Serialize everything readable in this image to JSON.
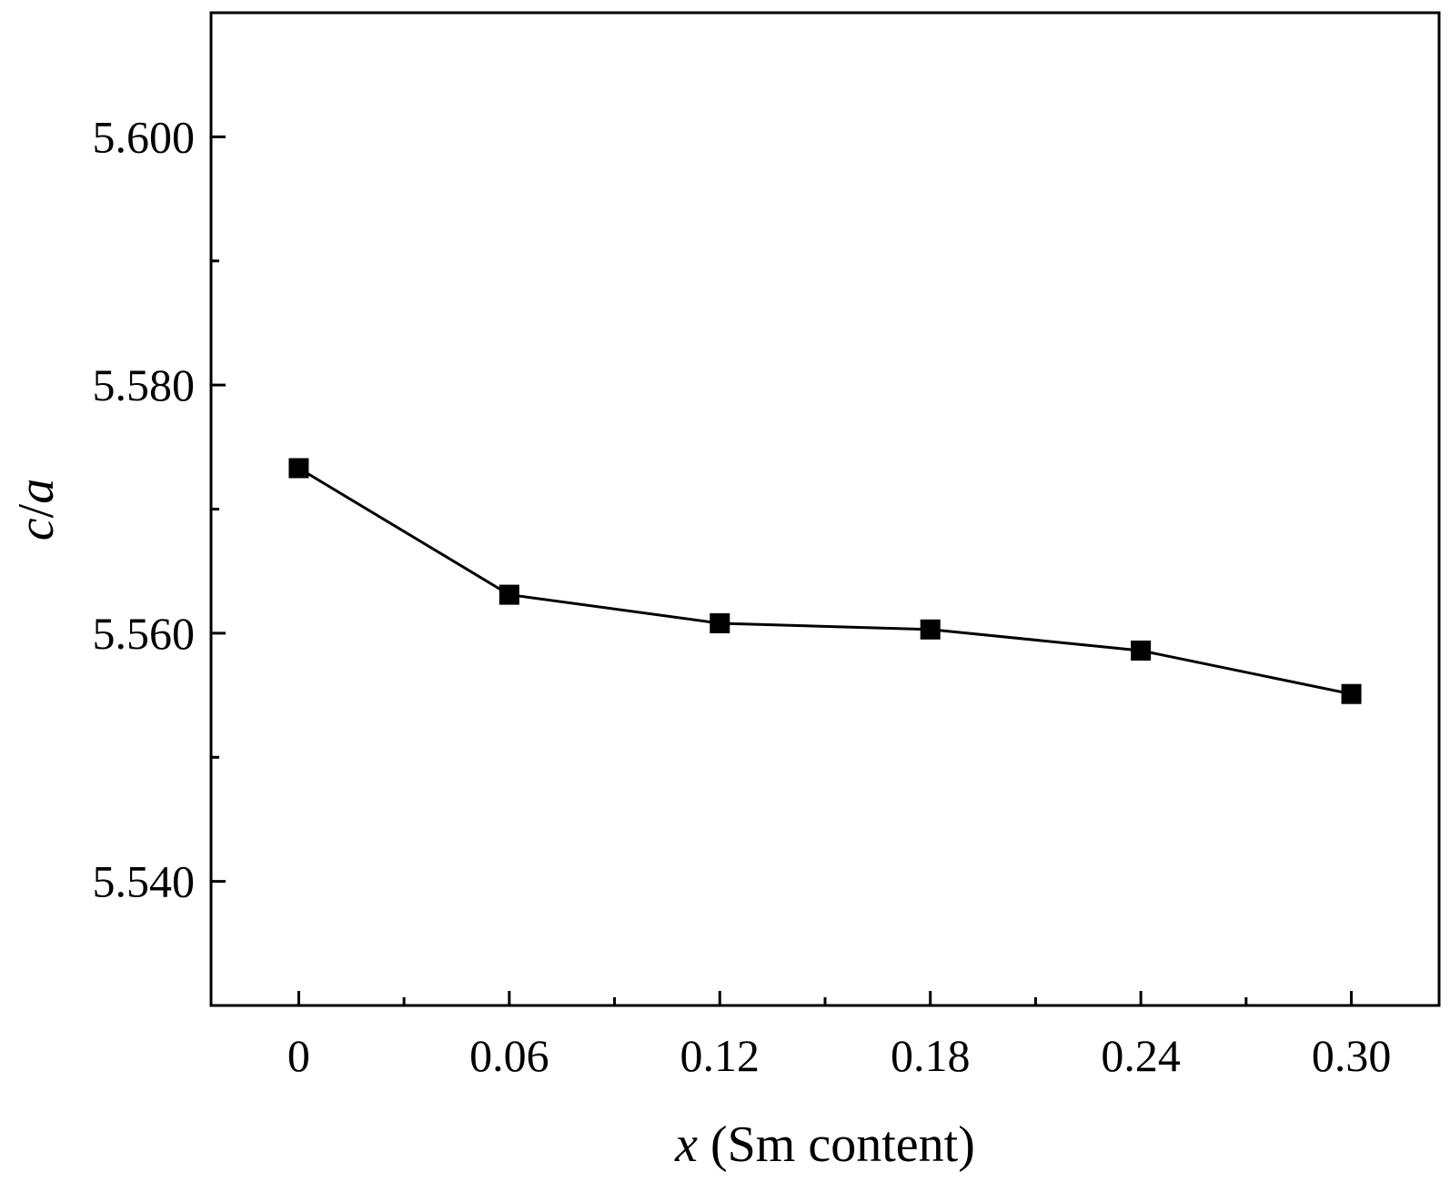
{
  "chart_data": {
    "type": "line",
    "title": "",
    "xlabel_var": "x",
    "xlabel_rest": " (Sm content)",
    "ylabel_c": "c",
    "ylabel_slash": "/",
    "ylabel_a": "a",
    "x": [
      0,
      0.06,
      0.12,
      0.18,
      0.24,
      0.3
    ],
    "x_tick_labels": [
      "0",
      "0.06",
      "0.12",
      "0.18",
      "0.24",
      "0.30"
    ],
    "series": [
      {
        "values": [
          5.5733,
          5.5631,
          5.5608,
          5.5603,
          5.5586,
          5.5551
        ]
      }
    ],
    "xlim": [
      -0.025,
      0.325
    ],
    "ylim": [
      5.53,
      5.61
    ],
    "y_ticks": [
      5.54,
      5.56,
      5.58,
      5.6
    ],
    "y_tick_labels": [
      "5.540",
      "5.560",
      "5.580",
      "5.600"
    ],
    "x_minor_ticks": [
      0.03,
      0.09,
      0.15,
      0.21,
      0.27
    ],
    "y_minor_ticks": [
      5.55,
      5.57,
      5.59
    ],
    "marker": "filled-square",
    "grid": false,
    "colors": {
      "line": "#000000",
      "marker": "#000000",
      "frame": "#000000"
    }
  }
}
